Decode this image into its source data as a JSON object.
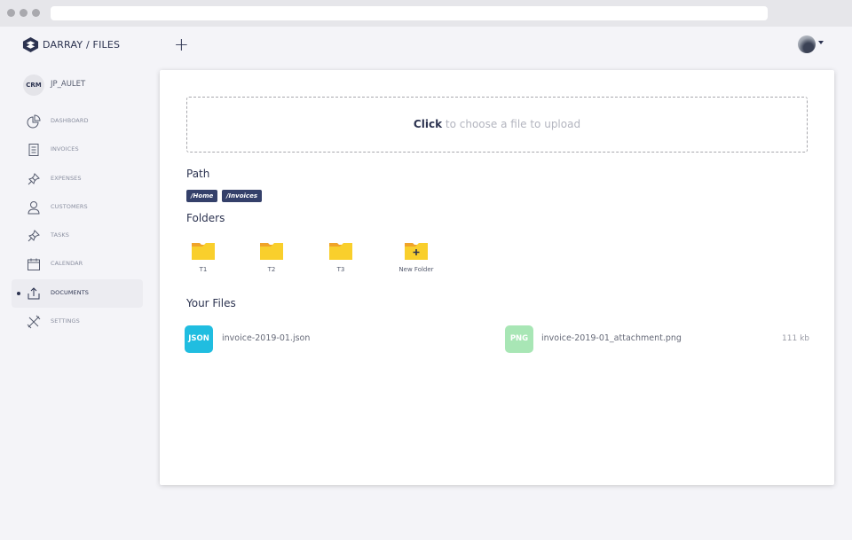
{
  "app": {
    "brand": "DARRAY",
    "section": "/ FILES"
  },
  "header": {
    "add_icon": "plus-icon",
    "avatar": "user-avatar"
  },
  "user": {
    "badge": "CRM",
    "name": "JP_AULET"
  },
  "sidebar": {
    "items": [
      {
        "label": "DASHBOARD",
        "icon": "pie-chart-icon"
      },
      {
        "label": "INVOICES",
        "icon": "document-icon"
      },
      {
        "label": "EXPENSES",
        "icon": "pin-icon"
      },
      {
        "label": "CUSTOMERS",
        "icon": "user-icon"
      },
      {
        "label": "TASKS",
        "icon": "pin-icon"
      },
      {
        "label": "CALENDAR",
        "icon": "calendar-icon"
      },
      {
        "label": "DOCUMENTS",
        "icon": "upload-icon",
        "active": true
      },
      {
        "label": "SETTINGS",
        "icon": "tools-icon"
      }
    ]
  },
  "upload": {
    "click": "Click",
    "text": "to choose a file to upload"
  },
  "path": {
    "title": "Path",
    "chips": [
      "/Home",
      "/Invoices"
    ]
  },
  "folders": {
    "title": "Folders",
    "items": [
      "T1",
      "T2",
      "T3",
      "New Folder"
    ]
  },
  "files": {
    "title": "Your Files",
    "items": [
      {
        "type": "JSON",
        "name": "invoice-2019-01.json",
        "size": "",
        "color": "#20bde0"
      },
      {
        "type": "PNG",
        "name": "invoice-2019-01_attachment.png",
        "size": "111 kb",
        "color": "#a8e6b5"
      }
    ]
  }
}
